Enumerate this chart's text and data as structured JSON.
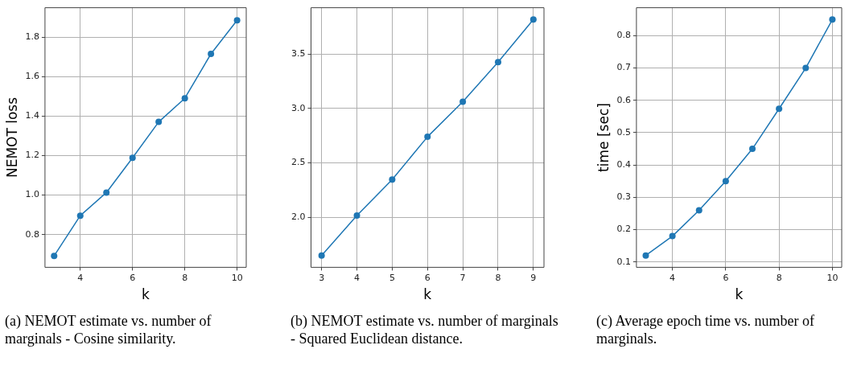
{
  "chart_data": [
    {
      "type": "line",
      "xlabel": "k",
      "ylabel": "NEMOT loss",
      "x": [
        3,
        4,
        5,
        6,
        7,
        8,
        9,
        10
      ],
      "series": [
        {
          "color": "#1f77b4",
          "values": [
            0.692,
            0.896,
            1.013,
            1.189,
            1.371,
            1.491,
            1.716,
            1.886
          ]
        }
      ],
      "xlim": [
        2.65,
        10.35
      ],
      "xticks": [
        4,
        6,
        8,
        10
      ],
      "ylim": [
        0.634,
        1.95
      ],
      "yticks": [
        0.8,
        {
          "value": 1,
          "label": "1.0"
        },
        1.2,
        1.4,
        1.6,
        1.8
      ],
      "grid": true,
      "marker": "circle",
      "annotations": [
        "(a) NEMOT estimate vs. number of marginals - Cosine similarity."
      ]
    },
    {
      "type": "line",
      "xlabel": "k",
      "x": [
        3,
        4,
        5,
        6,
        7,
        8,
        9
      ],
      "series": [
        {
          "color": "#1f77b4",
          "values": [
            1.65,
            2.017,
            2.348,
            2.74,
            3.062,
            3.426,
            3.817
          ]
        }
      ],
      "xlim": [
        2.7,
        9.3
      ],
      "xticks": [
        3,
        4,
        5,
        6,
        7,
        8,
        9
      ],
      "ylim": [
        1.542,
        3.925
      ],
      "yticks": [
        {
          "value": 2,
          "label": "2.0"
        },
        2.5,
        {
          "value": 3,
          "label": "3.0"
        },
        3.5
      ],
      "grid": true,
      "marker": "circle",
      "annotations": [
        "(b) NEMOT estimate vs. number of marginals - Squared Euclidean distance."
      ]
    },
    {
      "type": "line",
      "xlabel": "k",
      "ylabel": "time [sec]",
      "x": [
        3,
        4,
        5,
        6,
        7,
        8,
        9,
        10
      ],
      "series": [
        {
          "color": "#1f77b4",
          "values": [
            0.12,
            0.18,
            0.26,
            0.35,
            0.45,
            0.574,
            0.7,
            0.85
          ]
        }
      ],
      "xlim": [
        2.65,
        10.35
      ],
      "xticks": [
        4,
        6,
        8,
        10
      ],
      "ylim": [
        0.0835,
        0.8865
      ],
      "yticks": [
        0.1,
        0.2,
        0.3,
        0.4,
        0.5,
        0.6,
        0.7,
        0.8
      ],
      "grid": true,
      "marker": "circle",
      "annotations": [
        "(c) Average epoch time vs. number of marginals."
      ]
    }
  ]
}
